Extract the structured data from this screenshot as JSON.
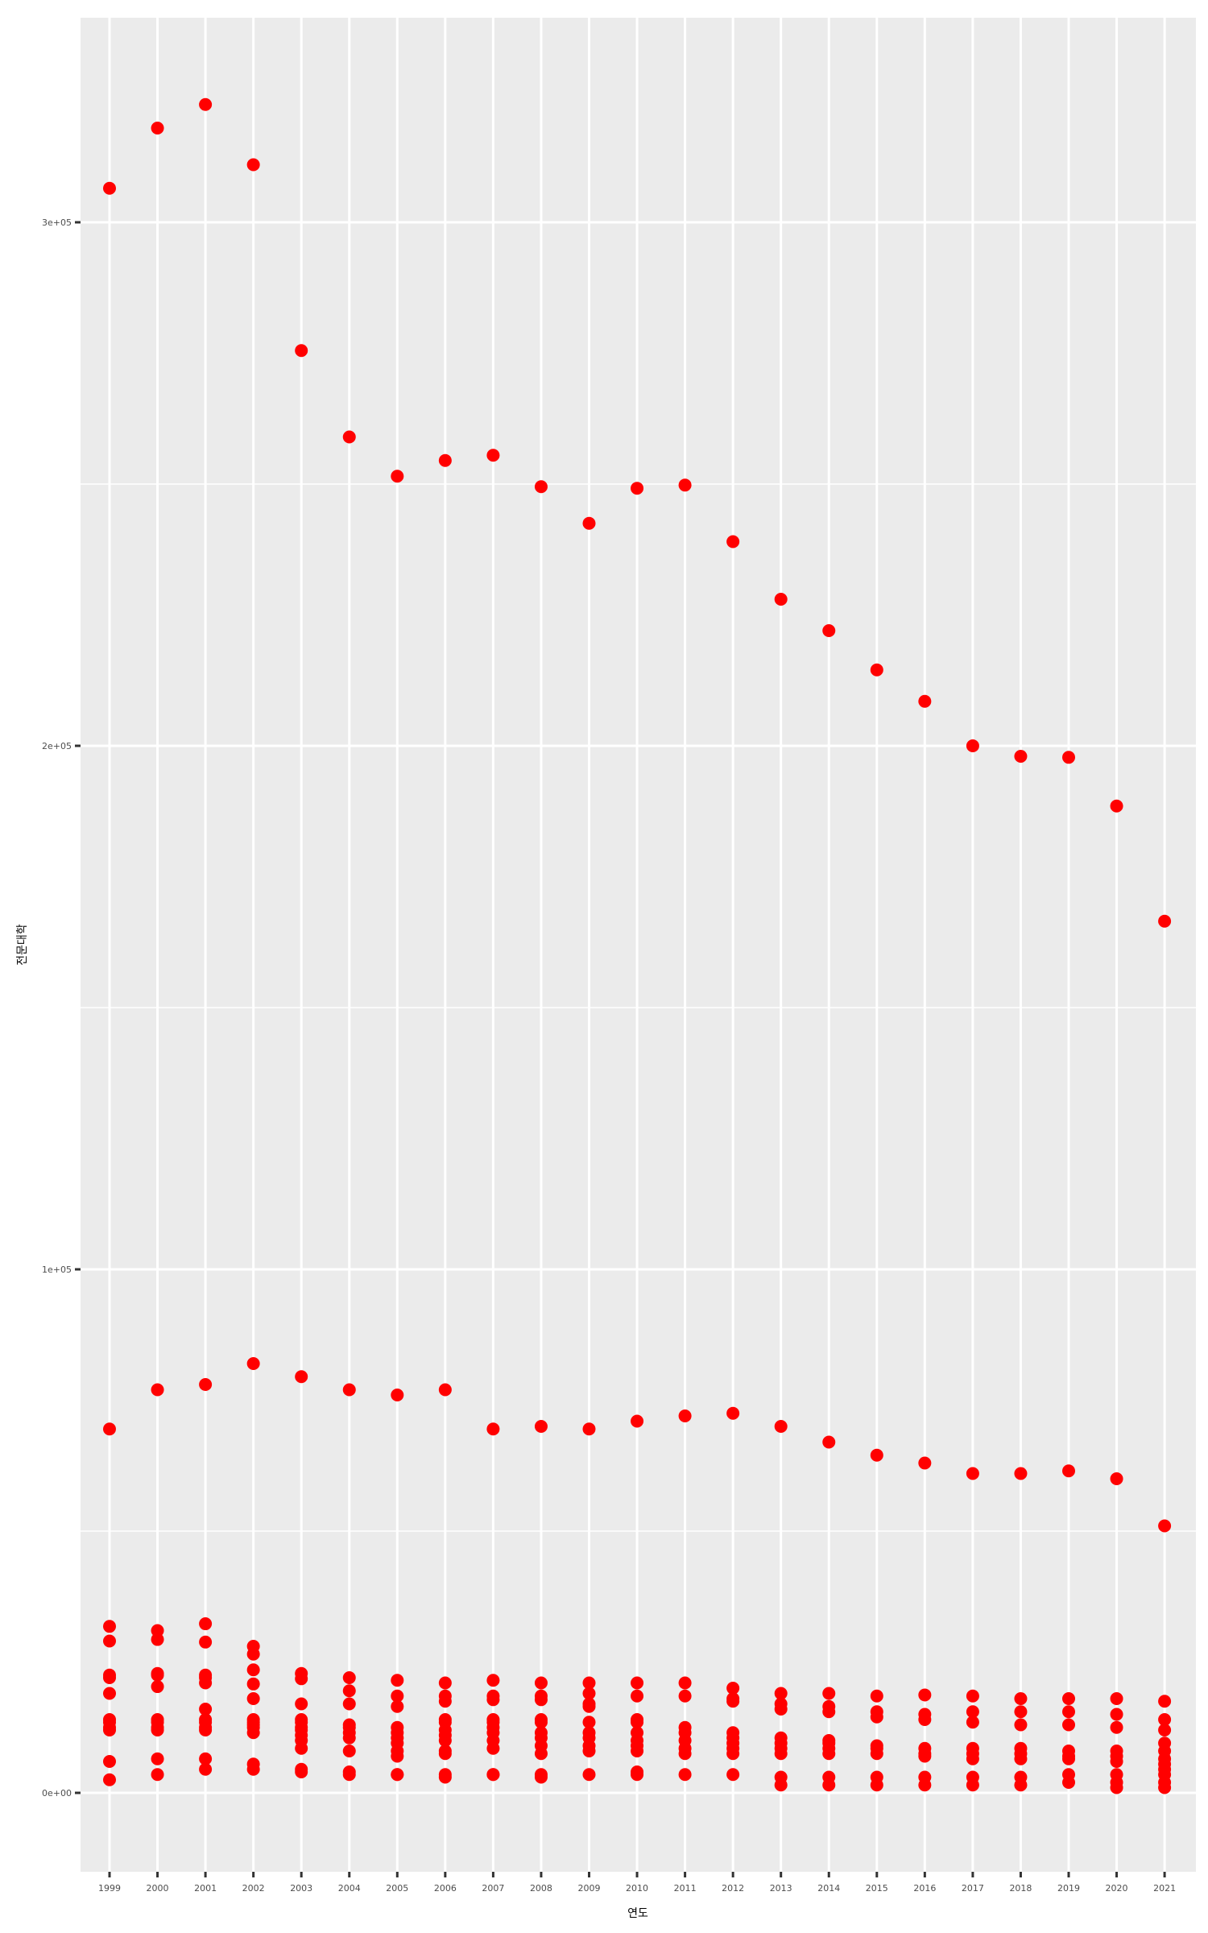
{
  "chart_data": {
    "type": "scatter",
    "title": "",
    "xlabel": "연도",
    "ylabel": "전문대학",
    "x_categories": [
      "1999",
      "2000",
      "2001",
      "2002",
      "2003",
      "2004",
      "2005",
      "2006",
      "2007",
      "2008",
      "2009",
      "2010",
      "2011",
      "2012",
      "2013",
      "2014",
      "2015",
      "2016",
      "2017",
      "2018",
      "2019",
      "2020",
      "2021"
    ],
    "y_ticks": [
      {
        "value": 0,
        "label": "0e+00"
      },
      {
        "value": 100000,
        "label": "1e+05"
      },
      {
        "value": 200000,
        "label": "2e+05"
      },
      {
        "value": 300000,
        "label": "3e+05"
      }
    ],
    "ylim": [
      -15000,
      345000
    ],
    "grid": true,
    "point_color": "#ff0000",
    "panel_background": "#ebebeb",
    "grid_color": "#ffffff",
    "points": [
      {
        "x": "1999",
        "y": [
          306500,
          69500,
          31800,
          29000,
          22500,
          22000,
          19000,
          14000,
          13500,
          12500,
          12000,
          6000,
          2500
        ]
      },
      {
        "x": "2000",
        "y": [
          318000,
          77000,
          31000,
          29300,
          22800,
          22500,
          20300,
          14000,
          13500,
          12500,
          12000,
          6500,
          3500
        ]
      },
      {
        "x": "2001",
        "y": [
          322500,
          78000,
          32300,
          28800,
          22500,
          22000,
          21000,
          16000,
          14000,
          13500,
          12500,
          12000,
          6500,
          4500
        ]
      },
      {
        "x": "2002",
        "y": [
          311000,
          82000,
          28000,
          26500,
          23500,
          20800,
          18000,
          14000,
          13500,
          13000,
          12500,
          11500,
          5500,
          4500
        ]
      },
      {
        "x": "2003",
        "y": [
          275500,
          79500,
          22800,
          21800,
          17000,
          14000,
          13500,
          12500,
          12000,
          11000,
          10000,
          8500,
          4500,
          4000
        ]
      },
      {
        "x": "2004",
        "y": [
          259000,
          77000,
          22000,
          19500,
          17000,
          13000,
          12500,
          11500,
          10500,
          8000,
          4000,
          3500
        ]
      },
      {
        "x": "2005",
        "y": [
          251500,
          76000,
          21500,
          18500,
          16500,
          12500,
          11500,
          10500,
          9500,
          8000,
          7000,
          3500,
          3500
        ]
      },
      {
        "x": "2006",
        "y": [
          254500,
          77000,
          21000,
          18500,
          17500,
          14000,
          13500,
          12000,
          11000,
          10000,
          8000,
          7500,
          3500,
          3000
        ]
      },
      {
        "x": "2007",
        "y": [
          255500,
          69500,
          21500,
          18500,
          17800,
          14000,
          13500,
          12500,
          11500,
          10000,
          8500,
          3500,
          3500
        ]
      },
      {
        "x": "2008",
        "y": [
          249500,
          70000,
          21000,
          18500,
          17800,
          14000,
          13500,
          11500,
          10500,
          9000,
          7500,
          3500,
          3000
        ]
      },
      {
        "x": "2009",
        "y": [
          242500,
          69500,
          21000,
          19000,
          17000,
          16500,
          13500,
          11500,
          10500,
          9000,
          8000,
          3500
        ]
      },
      {
        "x": "2010",
        "y": [
          249200,
          71000,
          21000,
          18500,
          14000,
          13500,
          11500,
          10000,
          9000,
          8000,
          4000,
          3500
        ]
      },
      {
        "x": "2011",
        "y": [
          249800,
          72000,
          21000,
          18500,
          12500,
          11500,
          10000,
          8500,
          7500,
          3500
        ]
      },
      {
        "x": "2012",
        "y": [
          239000,
          72500,
          20000,
          18000,
          17500,
          11500,
          10500,
          9500,
          8500,
          7500,
          3500
        ]
      },
      {
        "x": "2013",
        "y": [
          228000,
          70000,
          19000,
          17000,
          16000,
          10500,
          9500,
          8500,
          7500,
          3000,
          1500
        ]
      },
      {
        "x": "2014",
        "y": [
          222000,
          67000,
          19000,
          16500,
          15500,
          10000,
          9500,
          8500,
          7500,
          3000,
          1500
        ]
      },
      {
        "x": "2015",
        "y": [
          214500,
          64500,
          18500,
          15500,
          14500,
          9000,
          8500,
          7500,
          3000,
          1500
        ]
      },
      {
        "x": "2016",
        "y": [
          208500,
          63000,
          18700,
          15000,
          14000,
          8500,
          7500,
          7000,
          3000,
          1500
        ]
      },
      {
        "x": "2017",
        "y": [
          200000,
          61000,
          18500,
          15500,
          13500,
          8500,
          7500,
          6500,
          3000,
          1500
        ]
      },
      {
        "x": "2018",
        "y": [
          198000,
          61000,
          18000,
          15500,
          13000,
          8500,
          7500,
          6500,
          3000,
          1500
        ]
      },
      {
        "x": "2019",
        "y": [
          197800,
          61500,
          18000,
          15500,
          13000,
          8000,
          7000,
          6500,
          3500,
          2000
        ]
      },
      {
        "x": "2020",
        "y": [
          188500,
          60000,
          18000,
          15000,
          12500,
          8000,
          7000,
          6000,
          3500,
          2000,
          1000
        ]
      },
      {
        "x": "2021",
        "y": [
          166500,
          51000,
          17500,
          14000,
          12000,
          9500,
          8000,
          6500,
          5500,
          4500,
          3500,
          2000,
          1000
        ]
      }
    ]
  }
}
